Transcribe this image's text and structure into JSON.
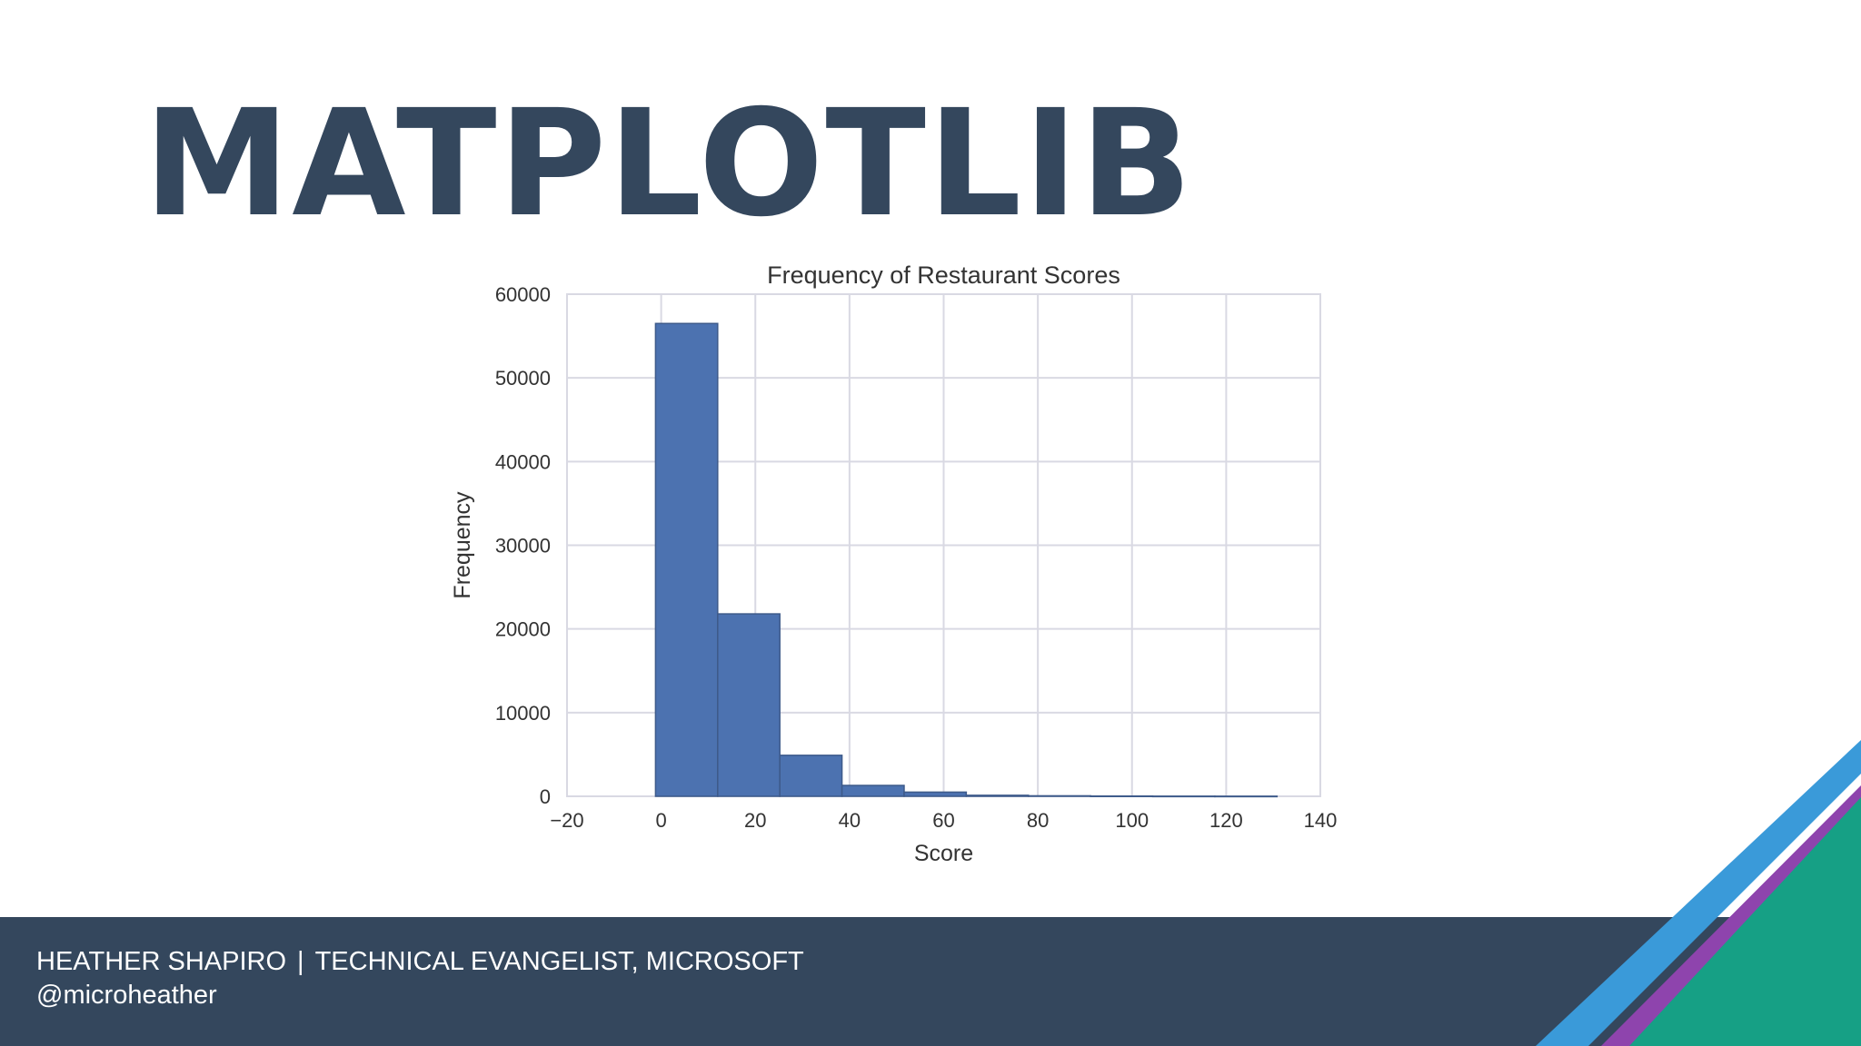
{
  "slide": {
    "title": "MATPLOTLIB",
    "title_color": "#34475d",
    "footer": {
      "name": "HEATHER SHAPIRO",
      "separator": "|",
      "role": "TECHNICAL EVANGELIST, MICROSOFT",
      "handle": "@microheather",
      "background": "#34475d"
    },
    "decoration_colors": [
      "#3a9ad9",
      "#8e44ad",
      "#16a085"
    ]
  },
  "chart_data": {
    "type": "bar",
    "title": "Frequency of Restaurant Scores",
    "xlabel": "Score",
    "ylabel": "Frequency",
    "xlim": [
      -20,
      140
    ],
    "ylim": [
      0,
      60000
    ],
    "xticks": [
      "−20",
      "0",
      "20",
      "40",
      "60",
      "80",
      "100",
      "120",
      "140"
    ],
    "yticks": [
      "0",
      "10000",
      "20000",
      "30000",
      "40000",
      "50000",
      "60000"
    ],
    "grid": true,
    "bar_color": "#4c72b0",
    "bin_edges": [
      -1.2,
      12,
      25.2,
      38.4,
      51.6,
      64.8,
      78,
      91.2,
      104.4,
      117.6,
      130.8
    ],
    "values": [
      56500,
      21800,
      4900,
      1300,
      500,
      120,
      60,
      30,
      15,
      10
    ]
  }
}
